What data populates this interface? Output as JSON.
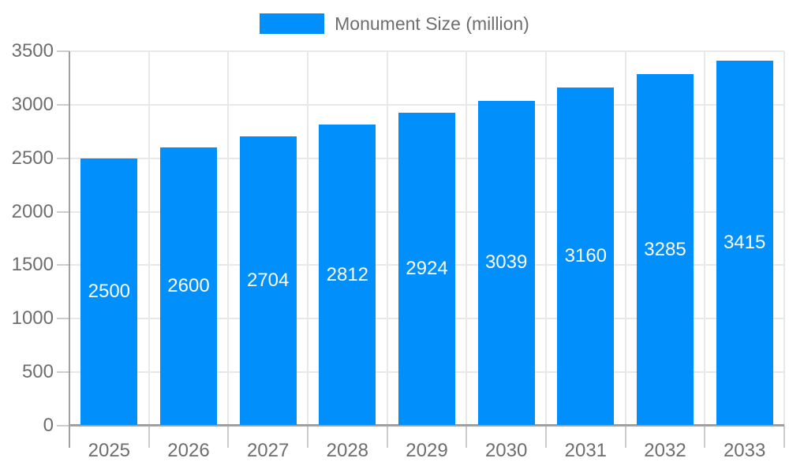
{
  "chart_data": {
    "type": "bar",
    "title": "Monument Size (million)",
    "legend": [
      {
        "label": "Monument Size (million)",
        "color": "#008FFB"
      }
    ],
    "legend_position": "top",
    "categories": [
      "2025",
      "2026",
      "2027",
      "2028",
      "2029",
      "2030",
      "2031",
      "2032",
      "2033"
    ],
    "series": [
      {
        "name": "Monument Size (million)",
        "values": [
          2500,
          2600,
          2704,
          2812,
          2924,
          3039,
          3160,
          3285,
          3415
        ]
      }
    ],
    "value_labels": [
      "2500",
      "2600",
      "2704",
      "2812",
      "2924",
      "3039",
      "3160",
      "3285",
      "3415"
    ],
    "xlabel": "",
    "ylabel": "",
    "ylim": [
      0,
      3500
    ],
    "ytick_step": 500,
    "ytick_labels": [
      "0",
      "500",
      "1000",
      "1500",
      "2000",
      "2500",
      "3000",
      "3500"
    ],
    "grid": true,
    "colors": {
      "bar": "#008FFB",
      "value_label": "#FFFFFF",
      "axis_text": "#6E6E6E",
      "legend_text": "#6E6E6E",
      "gridline": "#E8E8E8",
      "axis_line": "#A0A0A0",
      "tick": "#CCCCCC",
      "background": "#FFFFFF"
    }
  }
}
